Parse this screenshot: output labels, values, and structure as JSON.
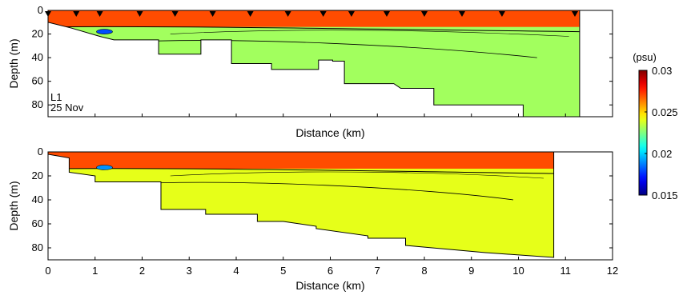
{
  "chart_data": [
    {
      "type": "contour",
      "panel": "top",
      "xlabel": "Distance (km)",
      "ylabel": "Depth (m)",
      "xlim": [
        0,
        12
      ],
      "ylim": [
        0,
        90
      ],
      "y_inverted": true,
      "y_ticks": [
        0,
        20,
        40,
        60,
        80
      ],
      "show_x_tick_labels": false,
      "annotation": [
        "L1",
        "25 Nov"
      ],
      "station_markers_km": [
        0,
        0.6,
        1.1,
        1.95,
        2.7,
        3.5,
        4.3,
        5.1,
        5.85,
        6.45,
        7.2,
        8.0,
        8.8,
        9.65,
        11.2
      ],
      "section_end_km": 11.3,
      "bottom_profile": [
        [
          0,
          10
        ],
        [
          0.5,
          15
        ],
        [
          1.1,
          22
        ],
        [
          1.4,
          25
        ],
        [
          2.35,
          25
        ],
        [
          2.35,
          37
        ],
        [
          3.25,
          37
        ],
        [
          3.25,
          25
        ],
        [
          3.9,
          25
        ],
        [
          3.9,
          45
        ],
        [
          4.75,
          45
        ],
        [
          4.75,
          50
        ],
        [
          5.75,
          50
        ],
        [
          5.75,
          42
        ],
        [
          6.05,
          42
        ],
        [
          6.05,
          43
        ],
        [
          6.3,
          43
        ],
        [
          6.3,
          62
        ],
        [
          7.35,
          62
        ],
        [
          7.5,
          66
        ],
        [
          8.2,
          66
        ],
        [
          8.2,
          80
        ],
        [
          10.1,
          80
        ],
        [
          10.1,
          90
        ],
        [
          11.3,
          90
        ]
      ],
      "surface_value": 0.027,
      "interior_value": 0.023,
      "low_value": 0.018,
      "axis_values": {
        "min": 0.015,
        "max": 0.03
      }
    },
    {
      "type": "contour",
      "panel": "bottom",
      "xlabel": "Distance (km)",
      "ylabel": "Depth (m)",
      "xlim": [
        0,
        12
      ],
      "ylim": [
        0,
        90
      ],
      "y_inverted": true,
      "x_ticks": [
        0,
        1,
        2,
        3,
        4,
        5,
        6,
        7,
        8,
        9,
        10,
        11,
        12
      ],
      "y_ticks": [
        0,
        20,
        40,
        60,
        80
      ],
      "section_end_km": 10.75,
      "bottom_profile": [
        [
          0,
          2
        ],
        [
          0.45,
          5
        ],
        [
          0.45,
          10
        ],
        [
          0.45,
          17
        ],
        [
          1.0,
          20
        ],
        [
          1.0,
          25
        ],
        [
          2.4,
          25
        ],
        [
          2.4,
          48
        ],
        [
          3.35,
          48
        ],
        [
          3.35,
          52
        ],
        [
          4.45,
          52
        ],
        [
          4.45,
          58
        ],
        [
          5.0,
          58
        ],
        [
          5.7,
          62
        ],
        [
          5.7,
          64
        ],
        [
          6.8,
          70
        ],
        [
          6.8,
          72
        ],
        [
          7.6,
          72
        ],
        [
          7.6,
          78
        ],
        [
          9.3,
          84
        ],
        [
          10.75,
          88
        ]
      ],
      "surface_value": 0.027,
      "interior_value": 0.024,
      "low_value": 0.019,
      "axis_values": {
        "min": 0.015,
        "max": 0.03
      }
    }
  ],
  "colorbar": {
    "label": "(psu)",
    "min": 0.015,
    "max": 0.03,
    "tick_values": [
      0.015,
      0.02,
      0.025,
      0.03
    ],
    "tick_labels": [
      "0.015",
      "0.02",
      "0.025",
      "0.03"
    ]
  }
}
